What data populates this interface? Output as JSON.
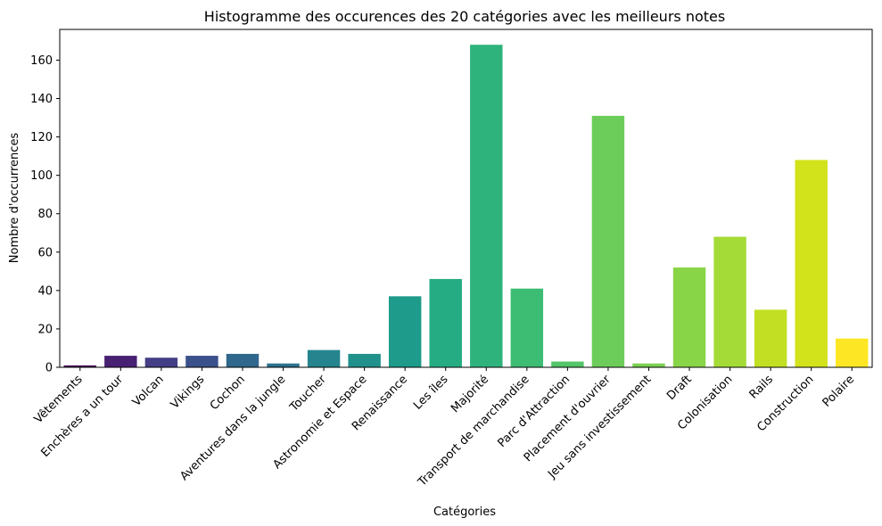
{
  "chart_data": {
    "type": "bar",
    "title": "Histogramme des occurences des 20 catégories avec les meilleurs notes",
    "xlabel": "Catégories",
    "ylabel": "Nombre d'occurrences",
    "ylim": [
      0,
      176
    ],
    "yticks": [
      0,
      20,
      40,
      60,
      80,
      100,
      120,
      140,
      160
    ],
    "grid": false,
    "legend": "none",
    "categories": [
      "Vêtements",
      "Enchères a un tour",
      "Volcan",
      "Vikings",
      "Cochon",
      "Aventures dans la jungle",
      "Toucher",
      "Astronomie et Espace",
      "Renaissance",
      "Les îles",
      "Majorité",
      "Transport de marchandise",
      "Parc d'Attraction",
      "Placement d'ouvrier",
      "Jeu sans investissement",
      "Draft",
      "Colonisation",
      "Rails",
      "Construction",
      "Polaire"
    ],
    "values": [
      1,
      6,
      5,
      6,
      7,
      2,
      9,
      7,
      37,
      46,
      168,
      41,
      3,
      131,
      2,
      52,
      68,
      30,
      108,
      15
    ],
    "colors": [
      "#440154",
      "#482173",
      "#433e85",
      "#3b518b",
      "#30678d",
      "#2c728e",
      "#25848e",
      "#21918c",
      "#1e9b8a",
      "#25ac82",
      "#2eb37c",
      "#3dbc74",
      "#54c568",
      "#6ccd5a",
      "#7ad151",
      "#89d548",
      "#a5db36",
      "#c2df23",
      "#d2e21b",
      "#fde725"
    ]
  }
}
